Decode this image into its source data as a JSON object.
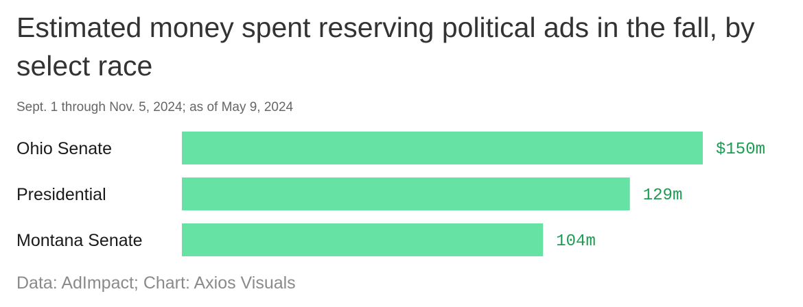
{
  "title": "Estimated money spent reserving political ads in the fall, by select race",
  "subtitle": "Sept. 1 through Nov. 5, 2024; as of May 9, 2024",
  "source": "Data: AdImpact; Chart: Axios Visuals",
  "colors": {
    "bar": "#66e3a4",
    "value_label": "#1e9b52"
  },
  "chart_data": {
    "type": "bar",
    "orientation": "horizontal",
    "categories": [
      "Ohio Senate",
      "Presidential",
      "Montana Senate"
    ],
    "values": [
      150,
      129,
      104
    ],
    "value_labels": [
      "$150m",
      "129m",
      "104m"
    ],
    "xlim": [
      0,
      150
    ],
    "grid": false,
    "legend": "none"
  }
}
